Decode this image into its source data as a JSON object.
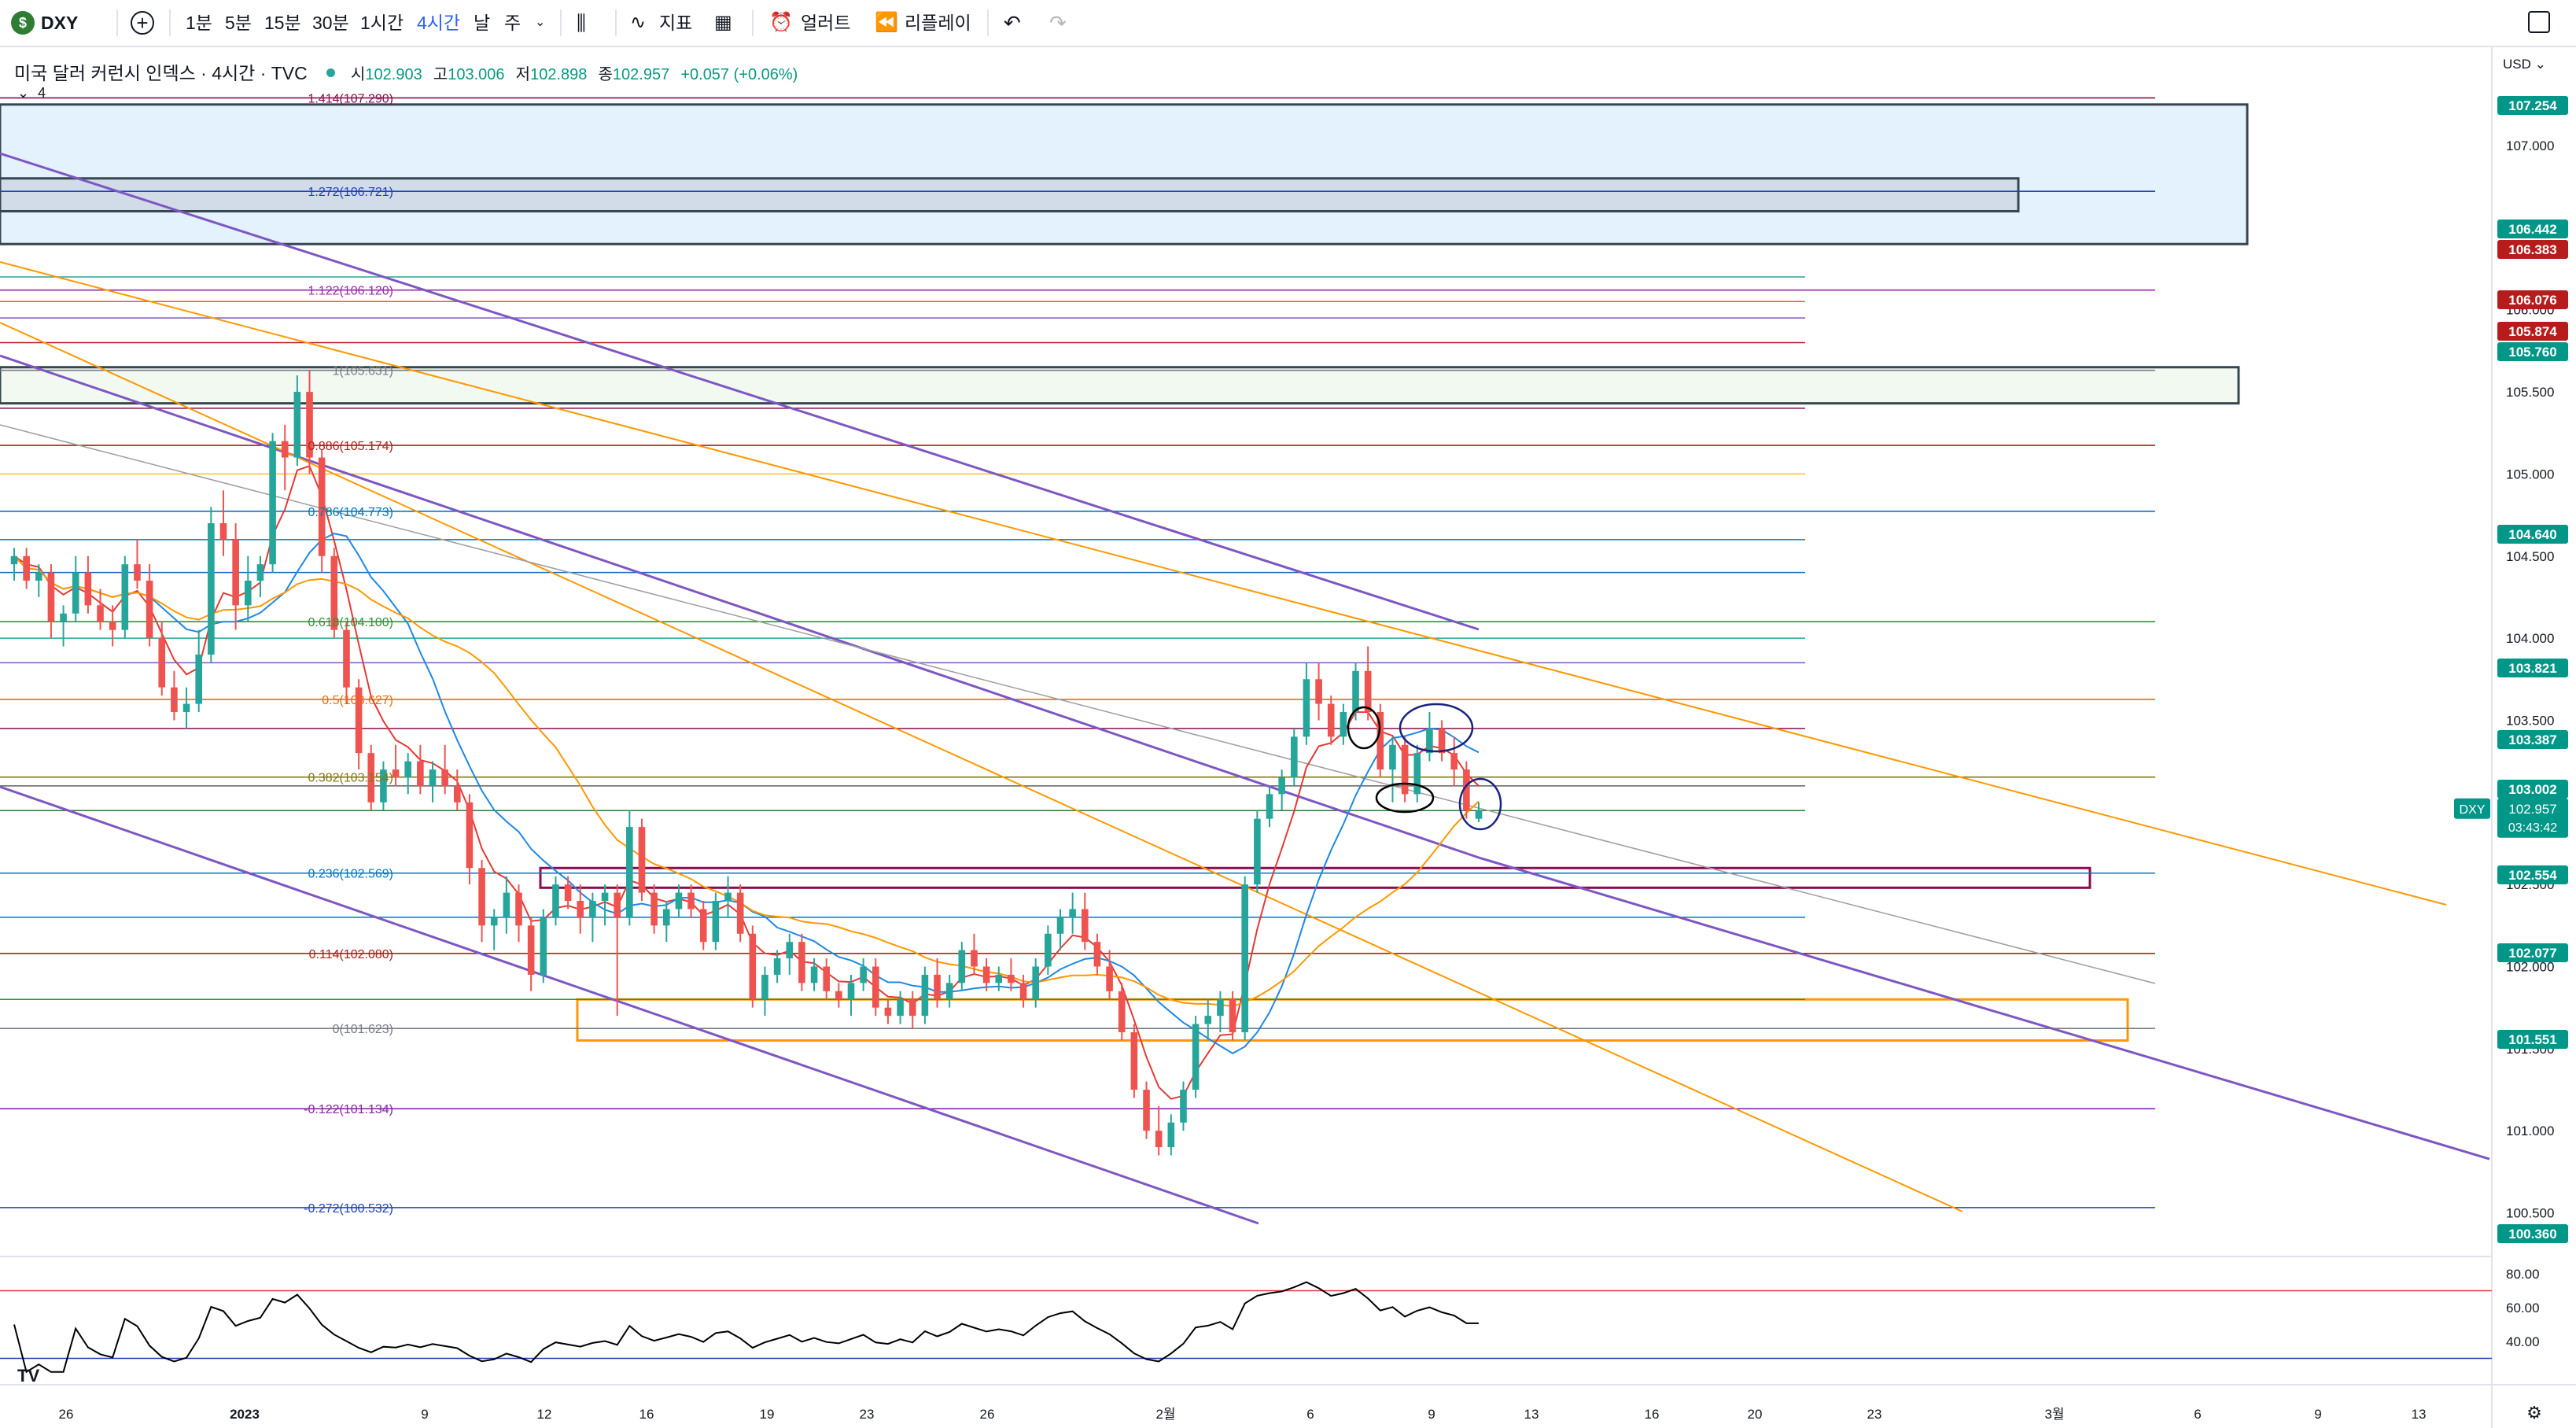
{
  "toolbar": {
    "symbol": "DXY",
    "symbol_badge": "$",
    "intervals": [
      "1분",
      "5분",
      "15분",
      "30분",
      "1시간",
      "4시간",
      "날",
      "주"
    ],
    "active_interval": "4시간",
    "indicators_label": "지표",
    "alert_label": "얼러트",
    "replay_label": "리플레이"
  },
  "legend": {
    "title": "미국 달러 커런시 인덱스 · 4시간 · TVC",
    "open_label": "시",
    "open": "102.903",
    "high_label": "고",
    "high": "103.006",
    "low_label": "저",
    "low": "102.898",
    "close_label": "종",
    "close": "102.957",
    "change": "+0.057 (+0.06%)",
    "collapse_count": "4"
  },
  "currency": "USD",
  "colors": {
    "up": "#26a69a",
    "down": "#ef5350",
    "purple": "#7e57c2",
    "orange": "#ff9800",
    "maroon": "#880e4f",
    "badge_red": "#b71c1c",
    "badge_green": "#009688",
    "blue": "#1e3fc0"
  },
  "chart_data": {
    "type": "candlestick",
    "symbol": "DXY",
    "timeframe": "4시간",
    "last": {
      "open": 102.903,
      "high": 103.006,
      "low": 102.898,
      "close": 102.957,
      "change": 0.057,
      "change_pct": 0.06
    },
    "countdown": "03:43:42",
    "ylim": [
      100.0,
      107.6
    ],
    "y_ticks": [
      "107.000",
      "106.500",
      "106.000",
      "105.500",
      "105.000",
      "104.500",
      "104.000",
      "103.500",
      "103.000",
      "102.500",
      "102.000",
      "101.500",
      "101.000",
      "100.500"
    ],
    "x_ticks": [
      "26",
      "2023",
      "9",
      "12",
      "16",
      "19",
      "23",
      "26",
      "2월",
      "6",
      "9",
      "13",
      "16",
      "20",
      "23",
      "3월",
      "6",
      "9",
      "13"
    ],
    "price_badges": [
      {
        "value": "107.254",
        "kind": "green"
      },
      {
        "value": "106.442",
        "kind": "green"
      },
      {
        "value": "106.383",
        "kind": "red"
      },
      {
        "value": "106.076",
        "kind": "red"
      },
      {
        "value": "105.874",
        "kind": "red"
      },
      {
        "value": "105.760",
        "kind": "green"
      },
      {
        "value": "104.640",
        "kind": "green"
      },
      {
        "value": "103.821",
        "kind": "green"
      },
      {
        "value": "103.387",
        "kind": "green"
      },
      {
        "value": "103.002",
        "kind": "green"
      },
      {
        "value": "102.554",
        "kind": "green"
      },
      {
        "value": "102.077",
        "kind": "green"
      },
      {
        "value": "101.551",
        "kind": "green"
      },
      {
        "value": "100.360",
        "kind": "green"
      }
    ],
    "fib_levels": [
      {
        "label": "1.414(107.290)",
        "price": 107.29,
        "color": "#880e4f"
      },
      {
        "label": "1.272(106.721)",
        "price": 106.721,
        "color": "#1e3fc0"
      },
      {
        "label": "1.122(106.120)",
        "price": 106.12,
        "color": "#9c27b0"
      },
      {
        "label": "1(105.631)",
        "price": 105.631,
        "color": "#787b86"
      },
      {
        "label": "0.886(105.174)",
        "price": 105.174,
        "color": "#b71c1c"
      },
      {
        "label": "0.786(104.773)",
        "price": 104.773,
        "color": "#0277bd"
      },
      {
        "label": "0.618(104.100)",
        "price": 104.1,
        "color": "#388e3c"
      },
      {
        "label": "0.5(103.627)",
        "price": 103.627,
        "color": "#ef6c00"
      },
      {
        "label": "0.382(103.154)",
        "price": 103.154,
        "color": "#827717"
      },
      {
        "label": "0.236(102.569)",
        "price": 102.569,
        "color": "#0277bd"
      },
      {
        "label": "0.114(102.080)",
        "price": 102.08,
        "color": "#b71c1c"
      },
      {
        "label": "0(101.623)",
        "price": 101.623,
        "color": "#787b86"
      },
      {
        "label": "-0.122(101.134)",
        "price": 101.134,
        "color": "#8e24aa"
      },
      {
        "label": "-0.272(100.532)",
        "price": 100.532,
        "color": "#1e3fc0"
      }
    ],
    "zones": [
      {
        "name": "supply-zone-blue",
        "from": 106.4,
        "to": 107.25
      },
      {
        "name": "supply-zone-gray",
        "from": 106.6,
        "to": 106.8
      },
      {
        "name": "supply-zone-green",
        "from": 105.43,
        "to": 105.65
      },
      {
        "name": "maroon-box",
        "from": 102.48,
        "to": 102.6
      },
      {
        "name": "orange-box",
        "from": 101.55,
        "to": 101.8
      }
    ],
    "candle_ohlc": [
      [
        104.45,
        104.55,
        104.35,
        104.5
      ],
      [
        104.5,
        104.55,
        104.3,
        104.35
      ],
      [
        104.35,
        104.45,
        104.25,
        104.4
      ],
      [
        104.4,
        104.45,
        104.0,
        104.1
      ],
      [
        104.1,
        104.2,
        103.95,
        104.15
      ],
      [
        104.15,
        104.5,
        104.1,
        104.4
      ],
      [
        104.4,
        104.5,
        104.15,
        104.2
      ],
      [
        104.2,
        104.3,
        104.05,
        104.1
      ],
      [
        104.1,
        104.2,
        103.95,
        104.05
      ],
      [
        104.05,
        104.5,
        104.0,
        104.45
      ],
      [
        104.45,
        104.6,
        104.3,
        104.35
      ],
      [
        104.35,
        104.45,
        103.95,
        104.0
      ],
      [
        104.0,
        104.1,
        103.65,
        103.7
      ],
      [
        103.7,
        103.8,
        103.5,
        103.55
      ],
      [
        103.55,
        103.7,
        103.45,
        103.6
      ],
      [
        103.6,
        104.05,
        103.55,
        103.9
      ],
      [
        103.9,
        104.8,
        103.85,
        104.7
      ],
      [
        104.7,
        104.9,
        104.5,
        104.6
      ],
      [
        104.6,
        104.7,
        104.05,
        104.2
      ],
      [
        104.2,
        104.5,
        104.1,
        104.35
      ],
      [
        104.35,
        104.5,
        104.25,
        104.45
      ],
      [
        104.45,
        105.25,
        104.4,
        105.2
      ],
      [
        105.2,
        105.3,
        104.9,
        105.1
      ],
      [
        105.1,
        105.6,
        105.05,
        105.5
      ],
      [
        105.5,
        105.63,
        105.0,
        105.1
      ],
      [
        105.1,
        105.15,
        104.4,
        104.5
      ],
      [
        104.5,
        104.55,
        104.0,
        104.05
      ],
      [
        104.05,
        104.1,
        103.6,
        103.7
      ],
      [
        103.7,
        103.75,
        103.2,
        103.3
      ],
      [
        103.3,
        103.35,
        102.95,
        103.0
      ],
      [
        103.0,
        103.25,
        102.95,
        103.2
      ],
      [
        103.2,
        103.35,
        103.1,
        103.15
      ],
      [
        103.15,
        103.3,
        103.05,
        103.25
      ],
      [
        103.25,
        103.35,
        103.05,
        103.1
      ],
      [
        103.1,
        103.25,
        103.0,
        103.2
      ],
      [
        103.2,
        103.35,
        103.05,
        103.1
      ],
      [
        103.1,
        103.2,
        102.95,
        103.0
      ],
      [
        103.0,
        103.05,
        102.5,
        102.6
      ],
      [
        102.6,
        102.65,
        102.15,
        102.25
      ],
      [
        102.25,
        102.35,
        102.1,
        102.3
      ],
      [
        102.3,
        102.55,
        102.2,
        102.45
      ],
      [
        102.45,
        102.5,
        102.15,
        102.25
      ],
      [
        102.25,
        102.3,
        101.85,
        101.95
      ],
      [
        101.95,
        102.35,
        101.9,
        102.3
      ],
      [
        102.3,
        102.55,
        102.25,
        102.5
      ],
      [
        102.5,
        102.55,
        102.35,
        102.4
      ],
      [
        102.4,
        102.5,
        102.2,
        102.3
      ],
      [
        102.3,
        102.45,
        102.15,
        102.4
      ],
      [
        102.4,
        102.5,
        102.25,
        102.45
      ],
      [
        102.45,
        102.5,
        101.7,
        102.3
      ],
      [
        102.3,
        102.95,
        102.25,
        102.85
      ],
      [
        102.85,
        102.9,
        102.4,
        102.45
      ],
      [
        102.45,
        102.5,
        102.2,
        102.25
      ],
      [
        102.25,
        102.4,
        102.15,
        102.35
      ],
      [
        102.35,
        102.5,
        102.3,
        102.45
      ],
      [
        102.45,
        102.5,
        102.3,
        102.35
      ],
      [
        102.35,
        102.4,
        102.1,
        102.15
      ],
      [
        102.15,
        102.45,
        102.1,
        102.4
      ],
      [
        102.4,
        102.55,
        102.3,
        102.45
      ],
      [
        102.45,
        102.5,
        102.15,
        102.2
      ],
      [
        102.2,
        102.25,
        101.75,
        101.8
      ],
      [
        101.8,
        102.0,
        101.7,
        101.95
      ],
      [
        101.95,
        102.1,
        101.9,
        102.05
      ],
      [
        102.05,
        102.2,
        101.95,
        102.15
      ],
      [
        102.15,
        102.2,
        101.85,
        101.9
      ],
      [
        101.9,
        102.05,
        101.85,
        102.0
      ],
      [
        102.0,
        102.05,
        101.8,
        101.85
      ],
      [
        101.85,
        101.9,
        101.75,
        101.8
      ],
      [
        101.8,
        101.95,
        101.7,
        101.9
      ],
      [
        101.9,
        102.05,
        101.85,
        102.0
      ],
      [
        102.0,
        102.05,
        101.7,
        101.75
      ],
      [
        101.75,
        101.8,
        101.65,
        101.7
      ],
      [
        101.7,
        101.85,
        101.65,
        101.8
      ],
      [
        101.8,
        101.85,
        101.62,
        101.7
      ],
      [
        101.7,
        102.0,
        101.65,
        101.95
      ],
      [
        101.95,
        102.05,
        101.75,
        101.8
      ],
      [
        101.8,
        101.95,
        101.75,
        101.9
      ],
      [
        101.9,
        102.15,
        101.85,
        102.1
      ],
      [
        102.1,
        102.2,
        101.95,
        102.0
      ],
      [
        102.0,
        102.05,
        101.85,
        101.9
      ],
      [
        101.9,
        102.0,
        101.85,
        101.95
      ],
      [
        101.95,
        102.05,
        101.85,
        101.9
      ],
      [
        101.9,
        101.95,
        101.75,
        101.8
      ],
      [
        101.8,
        102.05,
        101.75,
        102.0
      ],
      [
        102.0,
        102.25,
        101.95,
        102.2
      ],
      [
        102.2,
        102.35,
        102.1,
        102.3
      ],
      [
        102.3,
        102.45,
        102.2,
        102.35
      ],
      [
        102.35,
        102.45,
        102.1,
        102.15
      ],
      [
        102.15,
        102.2,
        101.95,
        102.0
      ],
      [
        102.0,
        102.1,
        101.8,
        101.85
      ],
      [
        101.85,
        101.9,
        101.55,
        101.6
      ],
      [
        101.6,
        101.65,
        101.2,
        101.25
      ],
      [
        101.25,
        101.3,
        100.95,
        101.0
      ],
      [
        101.0,
        101.15,
        100.85,
        100.9
      ],
      [
        100.9,
        101.1,
        100.85,
        101.05
      ],
      [
        101.05,
        101.3,
        101.0,
        101.25
      ],
      [
        101.25,
        101.7,
        101.2,
        101.65
      ],
      [
        101.65,
        101.8,
        101.55,
        101.7
      ],
      [
        101.7,
        101.85,
        101.6,
        101.8
      ],
      [
        101.8,
        101.85,
        101.55,
        101.6
      ],
      [
        101.6,
        102.55,
        101.55,
        102.5
      ],
      [
        102.5,
        102.95,
        102.45,
        102.9
      ],
      [
        102.9,
        103.1,
        102.85,
        103.05
      ],
      [
        103.05,
        103.2,
        102.95,
        103.15
      ],
      [
        103.15,
        103.45,
        103.1,
        103.4
      ],
      [
        103.4,
        103.85,
        103.35,
        103.75
      ],
      [
        103.75,
        103.85,
        103.5,
        103.6
      ],
      [
        103.6,
        103.65,
        103.35,
        103.4
      ],
      [
        103.4,
        103.6,
        103.35,
        103.55
      ],
      [
        103.55,
        103.85,
        103.5,
        103.8
      ],
      [
        103.8,
        103.95,
        103.5,
        103.55
      ],
      [
        103.55,
        103.6,
        103.15,
        103.2
      ],
      [
        103.2,
        103.4,
        103.0,
        103.35
      ],
      [
        103.35,
        103.4,
        103.0,
        103.05
      ],
      [
        103.05,
        103.35,
        103.0,
        103.3
      ],
      [
        103.3,
        103.55,
        103.25,
        103.45
      ],
      [
        103.45,
        103.5,
        103.25,
        103.3
      ],
      [
        103.3,
        103.4,
        103.1,
        103.2
      ],
      [
        103.2,
        103.25,
        102.9,
        102.95
      ],
      [
        102.9,
        103.0,
        102.88,
        102.95
      ]
    ],
    "rsi": {
      "levels": [
        "80.00",
        "60.00",
        "40.00"
      ]
    }
  }
}
